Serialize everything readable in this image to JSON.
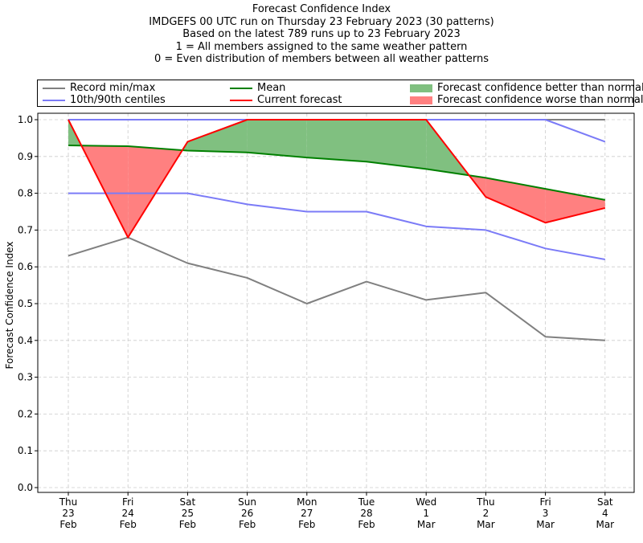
{
  "chart_data": {
    "type": "line",
    "title_lines": [
      "Forecast Confidence Index",
      "IMDGEFS 00 UTC run on Thursday 23 February 2023 (30 patterns)",
      "Based on the latest 789 runs up to 23 February 2023",
      "1 = All members assigned to the same weather pattern",
      "0 = Even distribution of members between all weather patterns"
    ],
    "ylabel": "Forecast Confidence Index",
    "xlabel": "",
    "ylim": [
      0,
      1.0
    ],
    "yticks": [
      "0.0",
      "0.1",
      "0.2",
      "0.3",
      "0.4",
      "0.5",
      "0.6",
      "0.7",
      "0.8",
      "0.9",
      "1.0"
    ],
    "grid": true,
    "legend_position": "top",
    "categories": [
      [
        "Thu",
        "23",
        "Feb"
      ],
      [
        "Fri",
        "24",
        "Feb"
      ],
      [
        "Sat",
        "25",
        "Feb"
      ],
      [
        "Sun",
        "26",
        "Feb"
      ],
      [
        "Mon",
        "27",
        "Feb"
      ],
      [
        "Tue",
        "28",
        "Feb"
      ],
      [
        "Wed",
        "1",
        "Mar"
      ],
      [
        "Thu",
        "2",
        "Mar"
      ],
      [
        "Fri",
        "3",
        "Mar"
      ],
      [
        "Sat",
        "4",
        "Mar"
      ]
    ],
    "legend": {
      "record": "Record min/max",
      "centiles": "10th/90th centiles",
      "mean": "Mean",
      "current": "Current forecast",
      "better": "Forecast confidence better than normal",
      "worse": "Forecast confidence worse than normal"
    },
    "series": [
      {
        "key": "record_max",
        "values": [
          1.0,
          1.0,
          1.0,
          1.0,
          1.0,
          1.0,
          1.0,
          1.0,
          1.0,
          1.0
        ],
        "color": "#808080"
      },
      {
        "key": "record_min",
        "values": [
          0.63,
          0.68,
          0.61,
          0.57,
          0.5,
          0.56,
          0.51,
          0.53,
          0.41,
          0.4
        ],
        "color": "#808080"
      },
      {
        "key": "centile_90",
        "values": [
          1.0,
          1.0,
          1.0,
          1.0,
          1.0,
          1.0,
          1.0,
          1.0,
          1.0,
          0.94
        ],
        "color": "#7b7bf7"
      },
      {
        "key": "centile_10",
        "values": [
          0.8,
          0.8,
          0.8,
          0.77,
          0.75,
          0.75,
          0.71,
          0.7,
          0.65,
          0.62
        ],
        "color": "#7b7bf7"
      },
      {
        "key": "mean",
        "values": [
          0.93,
          0.928,
          0.916,
          0.911,
          0.897,
          0.886,
          0.866,
          0.842,
          0.812,
          0.782
        ],
        "color": "#008000"
      },
      {
        "key": "current",
        "values": [
          1.0,
          0.68,
          0.94,
          1.0,
          1.0,
          1.0,
          1.0,
          0.79,
          0.72,
          0.76
        ],
        "color": "#ff0000"
      }
    ],
    "fill_colors": {
      "better": "#80c080",
      "worse": "#ff8080"
    }
  }
}
